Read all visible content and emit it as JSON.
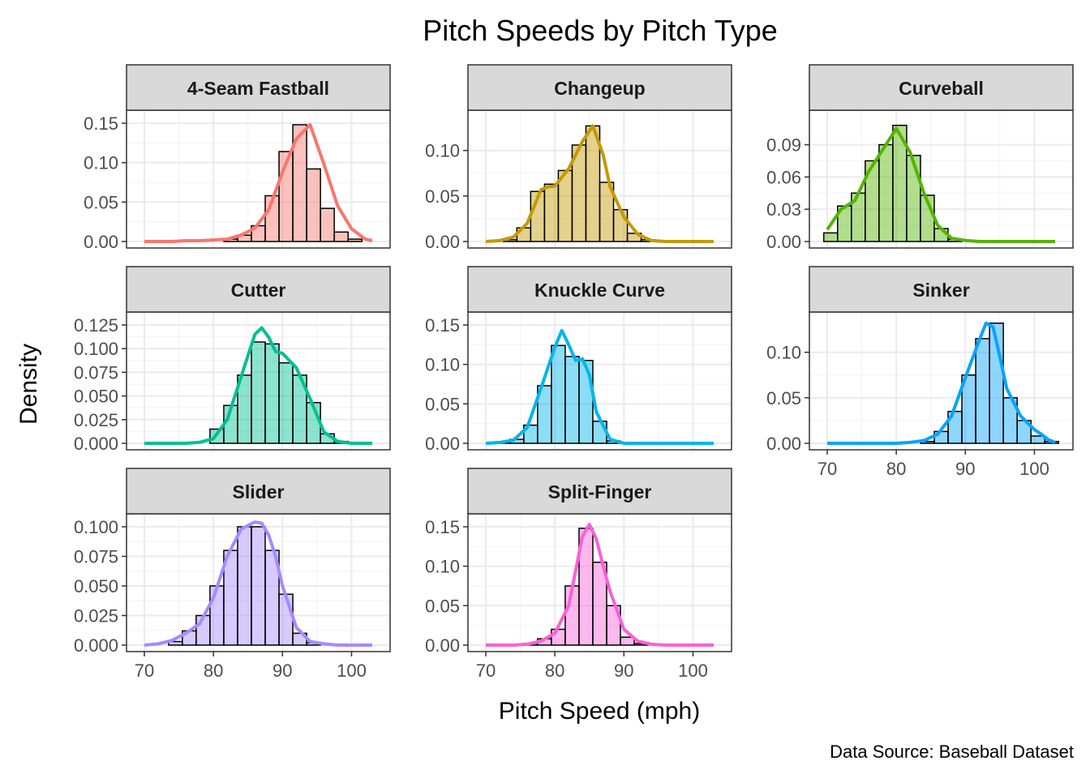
{
  "chart_data": {
    "type": "histogram-density",
    "title": "Pitch Speeds by Pitch Type",
    "xlabel": "Pitch Speed (mph)",
    "ylabel": "Density",
    "caption": "Data Source: Baseball Dataset",
    "xlim": [
      70,
      103
    ],
    "xticks": [
      70,
      80,
      90,
      100
    ],
    "bin_width": 2,
    "grid": true,
    "legend": "none",
    "panels": [
      {
        "name": "4-Seam Fastball",
        "color": "#F8766D",
        "yticks": [
          "0.00",
          "0.05",
          "0.10",
          "0.15"
        ],
        "ylim": [
          0,
          0.15
        ],
        "bins": [
          [
            82.5,
            0.003
          ],
          [
            84.5,
            0.008
          ],
          [
            86.5,
            0.02
          ],
          [
            88.5,
            0.058
          ],
          [
            90.5,
            0.114
          ],
          [
            92.5,
            0.148
          ],
          [
            94.5,
            0.092
          ],
          [
            96.5,
            0.042
          ],
          [
            98.5,
            0.012
          ],
          [
            100.5,
            0.003
          ]
        ],
        "density": [
          [
            70,
            0
          ],
          [
            74,
            0
          ],
          [
            76,
            0.001
          ],
          [
            78,
            0.001
          ],
          [
            80,
            0.002
          ],
          [
            82,
            0.003
          ],
          [
            84,
            0.008
          ],
          [
            86,
            0.017
          ],
          [
            88,
            0.04
          ],
          [
            90,
            0.088
          ],
          [
            92,
            0.13
          ],
          [
            94,
            0.148
          ],
          [
            96,
            0.098
          ],
          [
            98,
            0.045
          ],
          [
            100,
            0.016
          ],
          [
            102,
            0.003
          ],
          [
            103,
            0.001
          ]
        ]
      },
      {
        "name": "Changeup",
        "color": "#C49A00",
        "yticks": [
          "0.00",
          "0.05",
          "0.10"
        ],
        "ylim": [
          0,
          0.13
        ],
        "bins": [
          [
            73.5,
            0.002
          ],
          [
            75.5,
            0.015
          ],
          [
            77.5,
            0.055
          ],
          [
            79.5,
            0.063
          ],
          [
            81.5,
            0.078
          ],
          [
            83.5,
            0.106
          ],
          [
            85.5,
            0.127
          ],
          [
            87.5,
            0.065
          ],
          [
            89.5,
            0.035
          ],
          [
            91.5,
            0.009
          ],
          [
            93.5,
            0.002
          ]
        ],
        "density": [
          [
            70,
            0
          ],
          [
            72,
            0.001
          ],
          [
            74,
            0.005
          ],
          [
            76,
            0.02
          ],
          [
            78,
            0.057
          ],
          [
            79,
            0.06
          ],
          [
            80,
            0.061
          ],
          [
            82,
            0.08
          ],
          [
            84,
            0.11
          ],
          [
            85.5,
            0.127
          ],
          [
            87,
            0.095
          ],
          [
            88,
            0.06
          ],
          [
            90,
            0.027
          ],
          [
            92,
            0.008
          ],
          [
            94,
            0.001
          ],
          [
            96,
            0
          ],
          [
            103,
            0
          ]
        ]
      },
      {
        "name": "Curveball",
        "color": "#53B400",
        "yticks": [
          "0.00",
          "0.03",
          "0.06",
          "0.09"
        ],
        "ylim": [
          0,
          0.11
        ],
        "bins": [
          [
            70.5,
            0.008
          ],
          [
            72.5,
            0.033
          ],
          [
            74.5,
            0.045
          ],
          [
            76.5,
            0.075
          ],
          [
            78.5,
            0.09
          ],
          [
            80.5,
            0.108
          ],
          [
            82.5,
            0.08
          ],
          [
            84.5,
            0.043
          ],
          [
            86.5,
            0.012
          ],
          [
            88.5,
            0.002
          ]
        ],
        "density": [
          [
            70,
            0.011
          ],
          [
            72,
            0.03
          ],
          [
            74,
            0.038
          ],
          [
            76,
            0.065
          ],
          [
            78,
            0.085
          ],
          [
            80,
            0.105
          ],
          [
            82,
            0.083
          ],
          [
            84,
            0.045
          ],
          [
            86,
            0.015
          ],
          [
            88,
            0.003
          ],
          [
            90,
            0.001
          ],
          [
            92,
            0
          ],
          [
            103,
            0
          ]
        ]
      },
      {
        "name": "Cutter",
        "color": "#00C094",
        "yticks": [
          "0.000",
          "0.025",
          "0.050",
          "0.075",
          "0.100",
          "0.125"
        ],
        "ylim": [
          0,
          0.125
        ],
        "bins": [
          [
            80.5,
            0.015
          ],
          [
            82.5,
            0.04
          ],
          [
            84.5,
            0.072
          ],
          [
            86.5,
            0.107
          ],
          [
            88.5,
            0.105
          ],
          [
            90.5,
            0.085
          ],
          [
            92.5,
            0.072
          ],
          [
            94.5,
            0.043
          ],
          [
            96.5,
            0.01
          ],
          [
            98.5,
            0.002
          ]
        ],
        "density": [
          [
            70,
            0
          ],
          [
            76,
            0
          ],
          [
            78,
            0.001
          ],
          [
            80,
            0.005
          ],
          [
            82,
            0.025
          ],
          [
            84,
            0.07
          ],
          [
            86,
            0.115
          ],
          [
            87,
            0.122
          ],
          [
            88,
            0.112
          ],
          [
            89,
            0.097
          ],
          [
            90,
            0.095
          ],
          [
            92,
            0.08
          ],
          [
            94,
            0.047
          ],
          [
            96,
            0.012
          ],
          [
            98,
            0.002
          ],
          [
            100,
            0
          ],
          [
            103,
            0
          ]
        ]
      },
      {
        "name": "Knuckle Curve",
        "color": "#00B6EB",
        "yticks": [
          "0.00",
          "0.05",
          "0.10",
          "0.15"
        ],
        "ylim": [
          0,
          0.15
        ],
        "bins": [
          [
            72.5,
            0.002
          ],
          [
            74.5,
            0.005
          ],
          [
            76.5,
            0.023
          ],
          [
            78.5,
            0.073
          ],
          [
            80.5,
            0.124
          ],
          [
            82.5,
            0.11
          ],
          [
            84.5,
            0.105
          ],
          [
            86.5,
            0.028
          ],
          [
            88.5,
            0.003
          ]
        ],
        "density": [
          [
            70,
            0
          ],
          [
            72,
            0.001
          ],
          [
            74,
            0.004
          ],
          [
            76,
            0.02
          ],
          [
            78,
            0.07
          ],
          [
            80,
            0.122
          ],
          [
            81,
            0.143
          ],
          [
            82,
            0.125
          ],
          [
            83,
            0.105
          ],
          [
            84,
            0.107
          ],
          [
            85,
            0.087
          ],
          [
            86,
            0.04
          ],
          [
            88,
            0.005
          ],
          [
            90,
            0
          ],
          [
            103,
            0
          ]
        ]
      },
      {
        "name": "Sinker",
        "color": "#06A4FF",
        "yticks": [
          "0.00",
          "0.05",
          "0.10"
        ],
        "ylim": [
          0,
          0.13
        ],
        "bins": [
          [
            84.5,
            0.002
          ],
          [
            86.5,
            0.013
          ],
          [
            88.5,
            0.035
          ],
          [
            90.5,
            0.075
          ],
          [
            92.5,
            0.115
          ],
          [
            94.5,
            0.132
          ],
          [
            96.5,
            0.05
          ],
          [
            98.5,
            0.025
          ],
          [
            100.5,
            0.008
          ],
          [
            102.5,
            0.002
          ]
        ],
        "density": [
          [
            70,
            0
          ],
          [
            80,
            0
          ],
          [
            82,
            0.001
          ],
          [
            84,
            0.003
          ],
          [
            86,
            0.01
          ],
          [
            88,
            0.03
          ],
          [
            90,
            0.072
          ],
          [
            92,
            0.113
          ],
          [
            93,
            0.132
          ],
          [
            94,
            0.128
          ],
          [
            95,
            0.095
          ],
          [
            96,
            0.06
          ],
          [
            98,
            0.03
          ],
          [
            100,
            0.015
          ],
          [
            101,
            0.01
          ],
          [
            102,
            0.004
          ],
          [
            103,
            0.001
          ]
        ]
      },
      {
        "name": "Slider",
        "color": "#A58AFF",
        "yticks": [
          "0.000",
          "0.025",
          "0.050",
          "0.075",
          "0.100"
        ],
        "ylim": [
          0,
          0.1
        ],
        "bins": [
          [
            74.5,
            0.003
          ],
          [
            76.5,
            0.012
          ],
          [
            78.5,
            0.025
          ],
          [
            80.5,
            0.05
          ],
          [
            82.5,
            0.08
          ],
          [
            84.5,
            0.1
          ],
          [
            86.5,
            0.1
          ],
          [
            88.5,
            0.08
          ],
          [
            90.5,
            0.043
          ],
          [
            92.5,
            0.01
          ],
          [
            94.5,
            0.002
          ]
        ],
        "density": [
          [
            70,
            0
          ],
          [
            72,
            0.001
          ],
          [
            74,
            0.004
          ],
          [
            76,
            0.01
          ],
          [
            78,
            0.018
          ],
          [
            80,
            0.04
          ],
          [
            82,
            0.075
          ],
          [
            84,
            0.098
          ],
          [
            86,
            0.104
          ],
          [
            87,
            0.103
          ],
          [
            88,
            0.093
          ],
          [
            89,
            0.075
          ],
          [
            90,
            0.05
          ],
          [
            92,
            0.015
          ],
          [
            94,
            0.003
          ],
          [
            96,
            0.001
          ],
          [
            98,
            0
          ],
          [
            103,
            0
          ]
        ]
      },
      {
        "name": "Split-Finger",
        "color": "#FB61D7",
        "yticks": [
          "0.00",
          "0.05",
          "0.10",
          "0.15"
        ],
        "ylim": [
          0,
          0.15
        ],
        "bins": [
          [
            76.5,
            0.002
          ],
          [
            78.5,
            0.008
          ],
          [
            80.5,
            0.02
          ],
          [
            82.5,
            0.075
          ],
          [
            84.5,
            0.148
          ],
          [
            86.5,
            0.105
          ],
          [
            88.5,
            0.05
          ],
          [
            90.5,
            0.01
          ],
          [
            92.5,
            0.002
          ]
        ],
        "density": [
          [
            70,
            0
          ],
          [
            74,
            0
          ],
          [
            76,
            0.001
          ],
          [
            78,
            0.005
          ],
          [
            80,
            0.015
          ],
          [
            82,
            0.05
          ],
          [
            84,
            0.138
          ],
          [
            85,
            0.153
          ],
          [
            86,
            0.135
          ],
          [
            87,
            0.1
          ],
          [
            88,
            0.068
          ],
          [
            90,
            0.02
          ],
          [
            92,
            0.005
          ],
          [
            94,
            0.001
          ],
          [
            96,
            0
          ],
          [
            103,
            0
          ]
        ]
      }
    ]
  }
}
